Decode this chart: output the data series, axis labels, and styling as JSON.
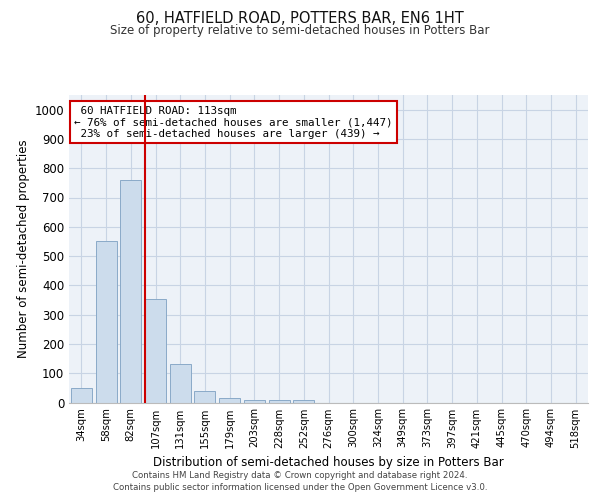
{
  "title1": "60, HATFIELD ROAD, POTTERS BAR, EN6 1HT",
  "title2": "Size of property relative to semi-detached houses in Potters Bar",
  "xlabel": "Distribution of semi-detached houses by size in Potters Bar",
  "ylabel": "Number of semi-detached properties",
  "categories": [
    "34sqm",
    "58sqm",
    "82sqm",
    "107sqm",
    "131sqm",
    "155sqm",
    "179sqm",
    "203sqm",
    "228sqm",
    "252sqm",
    "276sqm",
    "300sqm",
    "324sqm",
    "349sqm",
    "373sqm",
    "397sqm",
    "421sqm",
    "445sqm",
    "470sqm",
    "494sqm",
    "518sqm"
  ],
  "values": [
    50,
    550,
    760,
    355,
    130,
    38,
    17,
    10,
    10,
    8,
    0,
    0,
    0,
    0,
    0,
    0,
    0,
    0,
    0,
    0,
    0
  ],
  "bar_color": "#ccdcec",
  "bar_edge_color": "#8aaac8",
  "property_label": "60 HATFIELD ROAD: 113sqm",
  "pct_smaller": 76,
  "n_smaller": 1447,
  "pct_larger": 23,
  "n_larger": 439,
  "vline_position": 2.58,
  "vline_color": "#cc0000",
  "annotation_box_color": "#ffffff",
  "annotation_box_edge": "#cc0000",
  "ylim": [
    0,
    1050
  ],
  "yticks": [
    0,
    100,
    200,
    300,
    400,
    500,
    600,
    700,
    800,
    900,
    1000
  ],
  "grid_color": "#c8d4e4",
  "background_color": "#edf2f8",
  "footer1": "Contains HM Land Registry data © Crown copyright and database right 2024.",
  "footer2": "Contains public sector information licensed under the Open Government Licence v3.0."
}
